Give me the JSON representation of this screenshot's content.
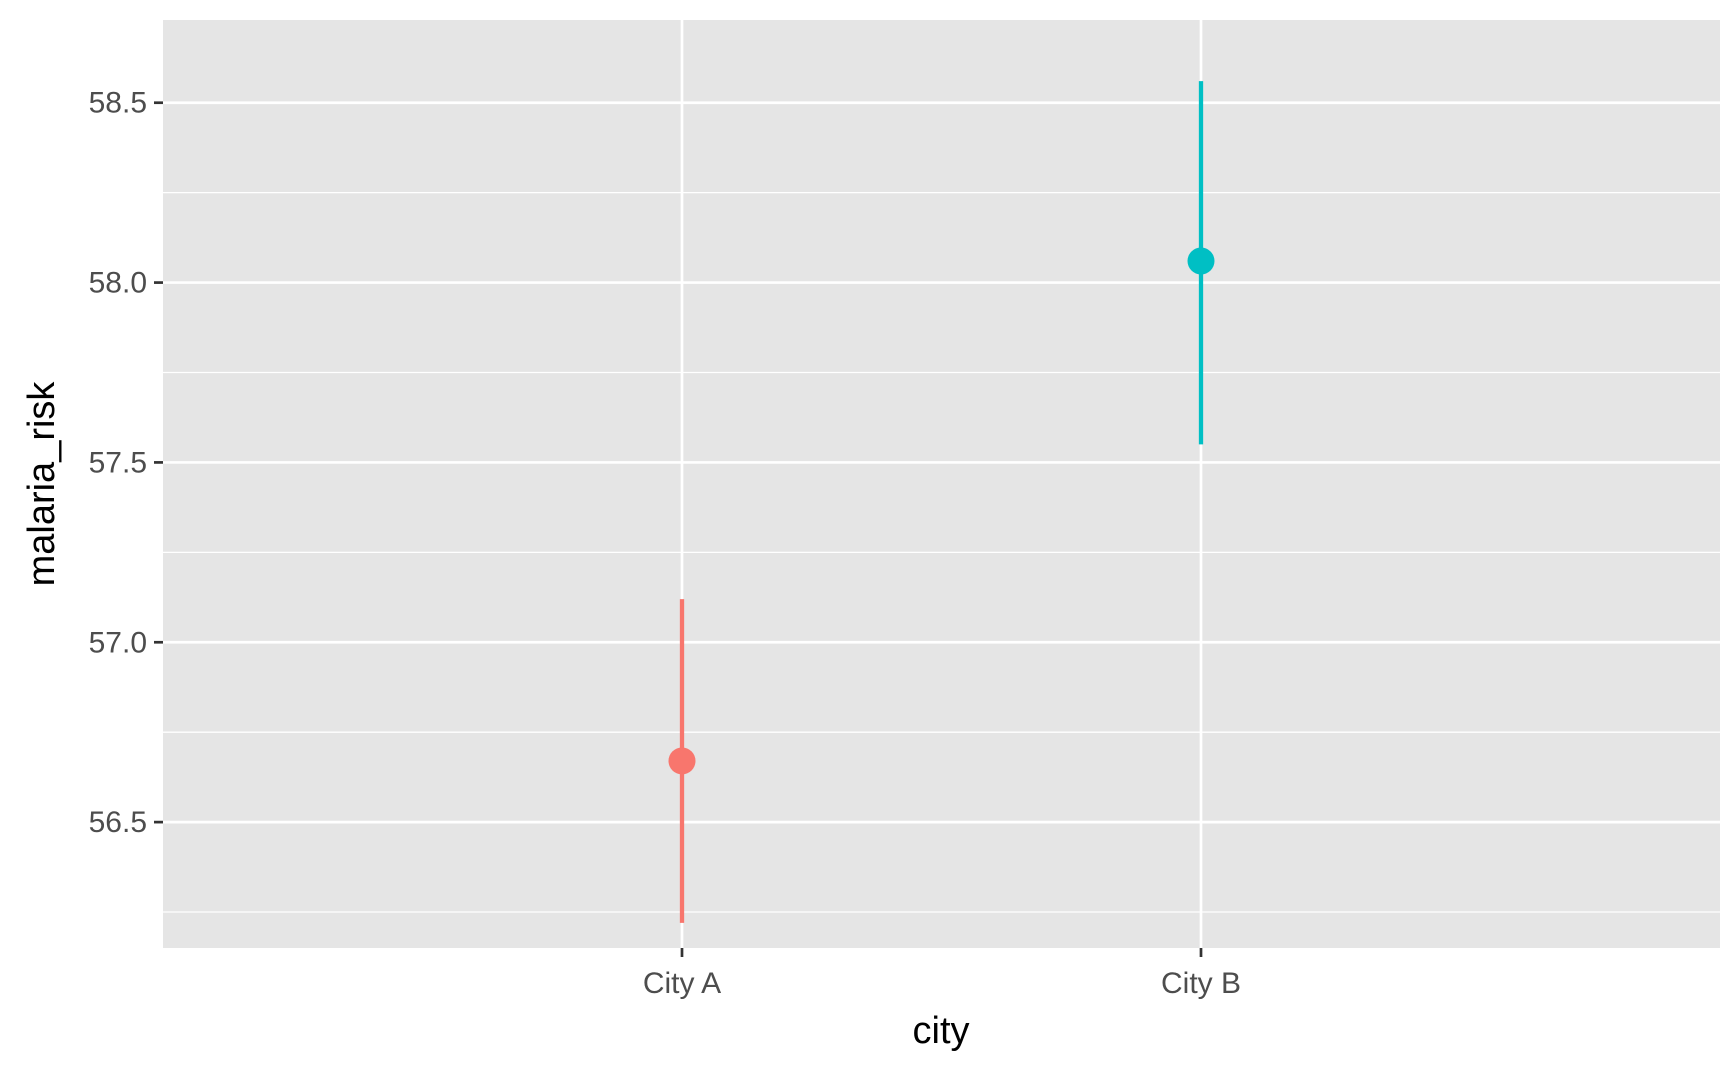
{
  "chart_data": {
    "type": "pointrange",
    "title": "",
    "xlabel": "city",
    "ylabel": "malaria_risk",
    "categories": [
      "City A",
      "City B"
    ],
    "points": [
      {
        "category": "City A",
        "estimate": 56.67,
        "lower": 56.22,
        "upper": 57.12,
        "color": "#F8766D"
      },
      {
        "category": "City B",
        "estimate": 58.06,
        "lower": 57.55,
        "upper": 58.56,
        "color": "#00BFC4"
      }
    ],
    "ylim": [
      56.15,
      58.73
    ],
    "y_ticks": [
      "56.5",
      "57.0",
      "57.5",
      "58.0",
      "58.5"
    ],
    "grid": true,
    "panel_background": "#e5e5e5",
    "gridline_color": "#ffffff",
    "legend": "none"
  }
}
